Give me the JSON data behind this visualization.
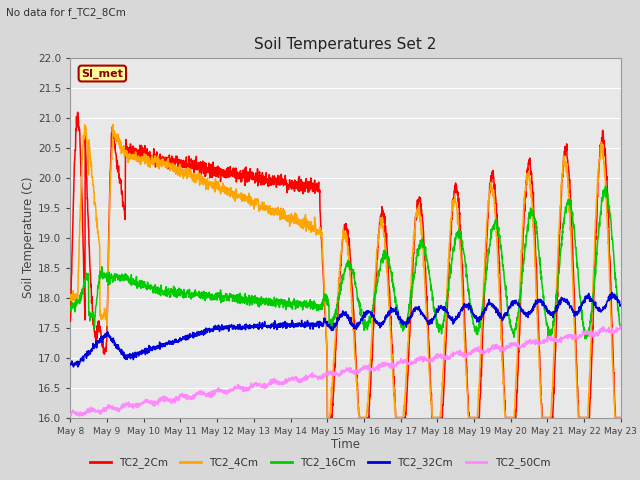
{
  "title": "Soil Temperatures Set 2",
  "subtitle": "No data for f_TC2_8Cm",
  "xlabel": "Time",
  "ylabel": "Soil Temperature (C)",
  "ylim": [
    16.0,
    22.0
  ],
  "yticks": [
    16.0,
    16.5,
    17.0,
    17.5,
    18.0,
    18.5,
    19.0,
    19.5,
    20.0,
    20.5,
    21.0,
    21.5,
    22.0
  ],
  "fig_bg_color": "#d8d8d8",
  "plot_bg_color": "#e8e8e8",
  "grid_color": "#ffffff",
  "series_colors": {
    "TC2_2Cm": "#ff0000",
    "TC2_4Cm": "#ffa500",
    "TC2_16Cm": "#00cc00",
    "TC2_32Cm": "#0000dd",
    "TC2_50Cm": "#ff88ff"
  },
  "legend_label": "SI_met",
  "legend_bg": "#ffff99",
  "legend_border": "#aa0000",
  "x_tick_days": [
    8,
    9,
    10,
    11,
    12,
    13,
    14,
    15,
    16,
    17,
    18,
    19,
    20,
    21,
    22,
    23
  ]
}
